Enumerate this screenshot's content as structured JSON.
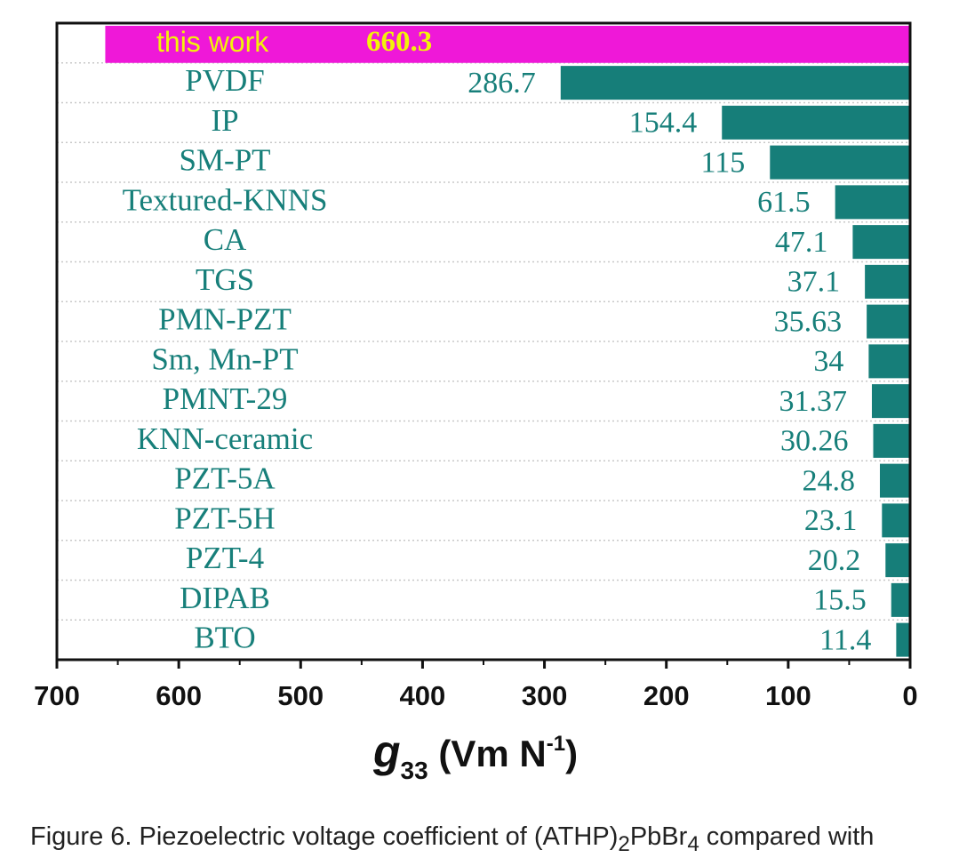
{
  "chart_data": {
    "type": "bar",
    "orientation": "horizontal",
    "x_axis_reversed": true,
    "xlabel": {
      "main": "g",
      "sub": "33",
      "unit_prefix": " (Vm N",
      "unit_sup": "-1",
      "unit_suffix": ")"
    },
    "xlim": [
      0,
      700
    ],
    "xticks": [
      "700",
      "600",
      "500",
      "400",
      "300",
      "200",
      "100",
      "0"
    ],
    "xtick_values": [
      700,
      600,
      500,
      400,
      300,
      200,
      100,
      0
    ],
    "grid": "dotted horizontal",
    "bar_color": "#167e79",
    "highlight_color": "#ef18d8",
    "highlight_text_color": "#f2f20a",
    "label_color": "#177f7a",
    "bars": [
      {
        "category": "this work",
        "value": 660.3,
        "value_label": "660.3",
        "highlight": true
      },
      {
        "category": "PVDF",
        "value": 286.7,
        "value_label": "286.7"
      },
      {
        "category": "IP",
        "value": 154.4,
        "value_label": "154.4"
      },
      {
        "category": "SM-PT",
        "value": 115,
        "value_label": "115"
      },
      {
        "category": "Textured-KNNS",
        "value": 61.5,
        "value_label": "61.5"
      },
      {
        "category": "CA",
        "value": 47.1,
        "value_label": "47.1"
      },
      {
        "category": "TGS",
        "value": 37.1,
        "value_label": "37.1"
      },
      {
        "category": "PMN-PZT",
        "value": 35.63,
        "value_label": "35.63"
      },
      {
        "category": "Sm, Mn-PT",
        "value": 34,
        "value_label": "34"
      },
      {
        "category": "PMNT-29",
        "value": 31.37,
        "value_label": "31.37"
      },
      {
        "category": "KNN-ceramic",
        "value": 30.26,
        "value_label": "30.26"
      },
      {
        "category": "PZT-5A",
        "value": 24.8,
        "value_label": "24.8"
      },
      {
        "category": "PZT-5H",
        "value": 23.1,
        "value_label": "23.1"
      },
      {
        "category": "PZT-4",
        "value": 20.2,
        "value_label": "20.2"
      },
      {
        "category": "DIPAB",
        "value": 15.5,
        "value_label": "15.5"
      },
      {
        "category": "BTO",
        "value": 11.4,
        "value_label": "11.4"
      }
    ]
  },
  "caption": {
    "prefix": "Figure 6. Piezoelectric voltage coefficient of (ATHP)",
    "sub1": "2",
    "mid": "PbBr",
    "sub2": "4",
    "suffix": " compared with"
  }
}
